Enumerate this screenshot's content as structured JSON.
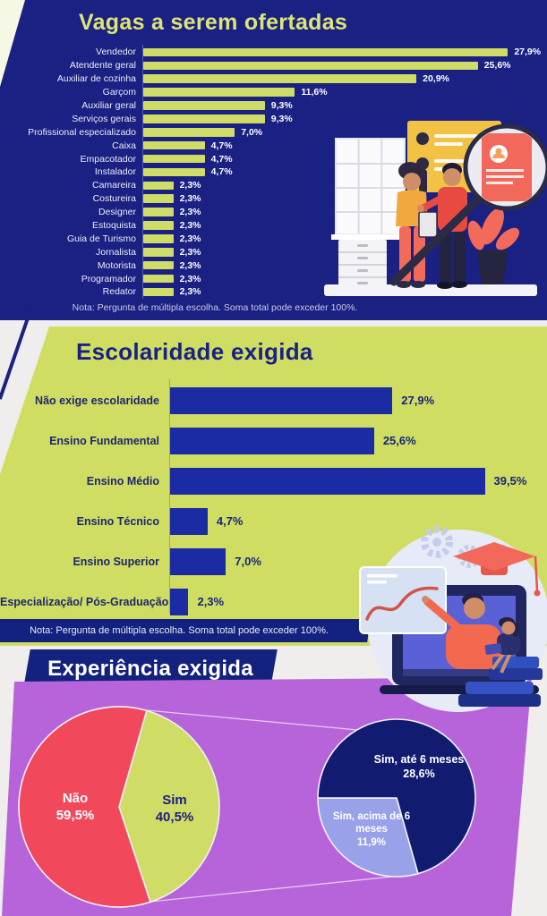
{
  "colors": {
    "navy_panel": "#1b2083",
    "green": "#cfdc66",
    "edu_bar_navy": "#1a2ba4",
    "banner_navy": "#13217f",
    "purple": "#b763da",
    "red": "#f2485c",
    "lavender": "#99a1e8",
    "pie_dark_navy": "#111b70",
    "background": "#efeeec"
  },
  "sections": {
    "jobs": {
      "title": "Vagas a serem ofertadas",
      "note": "Nota: Pergunta de múltipla escolha. Soma total pode exceder 100%."
    },
    "education": {
      "title": "Escolaridade exigida",
      "note": "Nota: Pergunta de múltipla escolha. Soma total pode exceder 100%."
    },
    "experience": {
      "title": "Experiência exigida"
    }
  },
  "chart_data": [
    {
      "id": "jobs",
      "type": "bar",
      "orientation": "horizontal",
      "title": "Vagas a serem ofertadas",
      "categories": [
        "Vendedor",
        "Atendente geral",
        "Auxiliar de cozinha",
        "Garçom",
        "Auxiliar geral",
        "Serviços gerais",
        "Profissional especializado",
        "Caixa",
        "Empacotador",
        "Instalador",
        "Camareira",
        "Costureira",
        "Designer",
        "Estoquista",
        "Guia de Turismo",
        "Jornalista",
        "Motorista",
        "Programador",
        "Redator"
      ],
      "values": [
        27.9,
        25.6,
        20.9,
        11.6,
        9.3,
        9.3,
        7.0,
        4.7,
        4.7,
        4.7,
        2.3,
        2.3,
        2.3,
        2.3,
        2.3,
        2.3,
        2.3,
        2.3,
        2.3
      ],
      "value_labels": [
        "27,9%",
        "25,6%",
        "20,9%",
        "11,6%",
        "9,3%",
        "9,3%",
        "7,0%",
        "4,7%",
        "4,7%",
        "4,7%",
        "2,3%",
        "2,3%",
        "2,3%",
        "2,3%",
        "2,3%",
        "2,3%",
        "2,3%",
        "2,3%",
        "2,3%"
      ],
      "bar_color": "#cfdc66",
      "note": "Nota: Pergunta de múltipla escolha. Soma total pode exceder 100%.",
      "xlim": [
        0,
        30
      ],
      "grid": false
    },
    {
      "id": "education",
      "type": "bar",
      "orientation": "horizontal",
      "title": "Escolaridade exigida",
      "categories": [
        "Não exige escolaridade",
        "Ensino Fundamental",
        "Ensino Médio",
        "Ensino Técnico",
        "Ensino Superior",
        "Especialização/ Pós-Graduação"
      ],
      "values": [
        27.9,
        25.6,
        39.5,
        4.7,
        7.0,
        2.3
      ],
      "value_labels": [
        "27,9%",
        "25,6%",
        "39,5%",
        "4,7%",
        "7,0%",
        "2,3%"
      ],
      "bar_color": "#1a2ba4",
      "note": "Nota: Pergunta de múltipla escolha. Soma total pode exceder 100%.",
      "xlim": [
        0,
        42
      ],
      "grid": false
    },
    {
      "id": "experience_pie",
      "type": "pie",
      "title": "Experiência exigida",
      "slices": [
        {
          "label": "Sim",
          "pct_label": "40,5%",
          "value": 40.5,
          "color": "#cfdc66",
          "text_color": "#1b2083"
        },
        {
          "label": "Não",
          "pct_label": "59,5%",
          "value": 59.5,
          "color": "#f2485c",
          "text_color": "#ffffff"
        }
      ],
      "start_angle": -74
    },
    {
      "id": "experience_detail_pie",
      "type": "pie",
      "title": "Experiência exigida (detalhe do Sim)",
      "slices": [
        {
          "label": "Sim, acima de 6 meses",
          "pct_label": "11,9%",
          "value": 11.9,
          "color": "#99a1e8",
          "text_color": "#ffffff"
        },
        {
          "label": "Sim, até 6 meses",
          "pct_label": "28,6%",
          "value": 28.6,
          "color": "#111b70",
          "text_color": "#ffffff"
        }
      ],
      "start_angle": 74.2
    }
  ]
}
